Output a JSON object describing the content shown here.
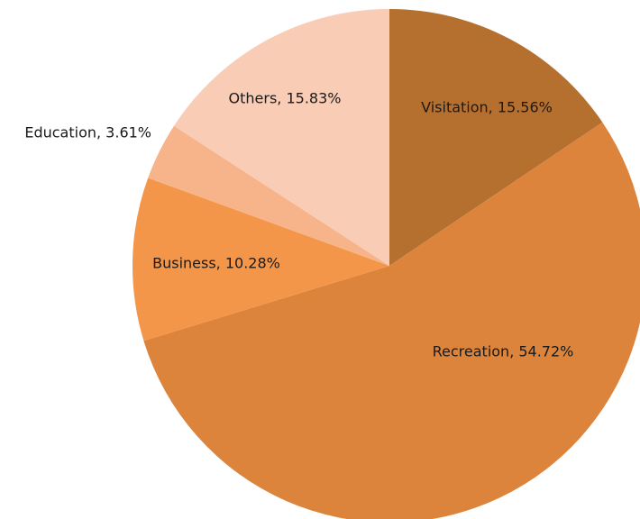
{
  "chart_data": {
    "type": "pie",
    "values": [
      15.56,
      54.72,
      10.28,
      3.61,
      15.83
    ],
    "value_labels": [
      "Visitation, 15.56%",
      "Recreation, 54.72%",
      "Business, 10.28%",
      "Education, 3.61%",
      "Others, 15.83%"
    ],
    "colors": [
      "#b5702f",
      "#dc843b",
      "#f4964a",
      "#f7b48a",
      "#f9ccb5"
    ]
  }
}
